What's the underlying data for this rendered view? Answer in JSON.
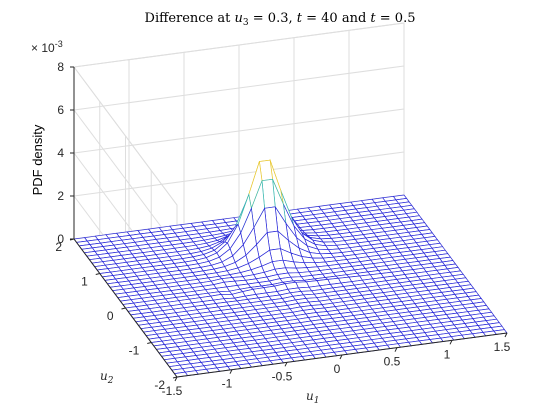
{
  "chart_data": {
    "type": "surface",
    "title_prefix": "Difference at ",
    "title_math_u": "u",
    "title_math_sub": "3",
    "title_mid": " = 0.3, ",
    "title_t1": "t",
    "title_eq1": " = 40 and ",
    "title_t2": "t",
    "title_eq2": " = 0.5",
    "xlabel_main": "u",
    "xlabel_sub": "1",
    "ylabel_main": "u",
    "ylabel_sub": "2",
    "zlabel": "PDF density",
    "zexponent_base": "× 10",
    "zexponent_power": "-3",
    "xlim": [
      -1.5,
      1.5
    ],
    "ylim": [
      -2,
      2
    ],
    "zlim": [
      0,
      8
    ],
    "x_ticks": [
      "-1.5",
      "-1",
      "-0.5",
      "0",
      "0.5",
      "1",
      "1.5"
    ],
    "y_ticks": [
      "-2",
      "-1",
      "0",
      "1",
      "2"
    ],
    "z_ticks": [
      "0",
      "2",
      "4",
      "6",
      "8"
    ],
    "grid": true,
    "mesh_color": "#2a2ad8",
    "face_color": "#ffffff",
    "peak": {
      "u1": 0.0,
      "u2": 1.0,
      "value": 4.6
    },
    "nx": 32,
    "ny": 41
  }
}
